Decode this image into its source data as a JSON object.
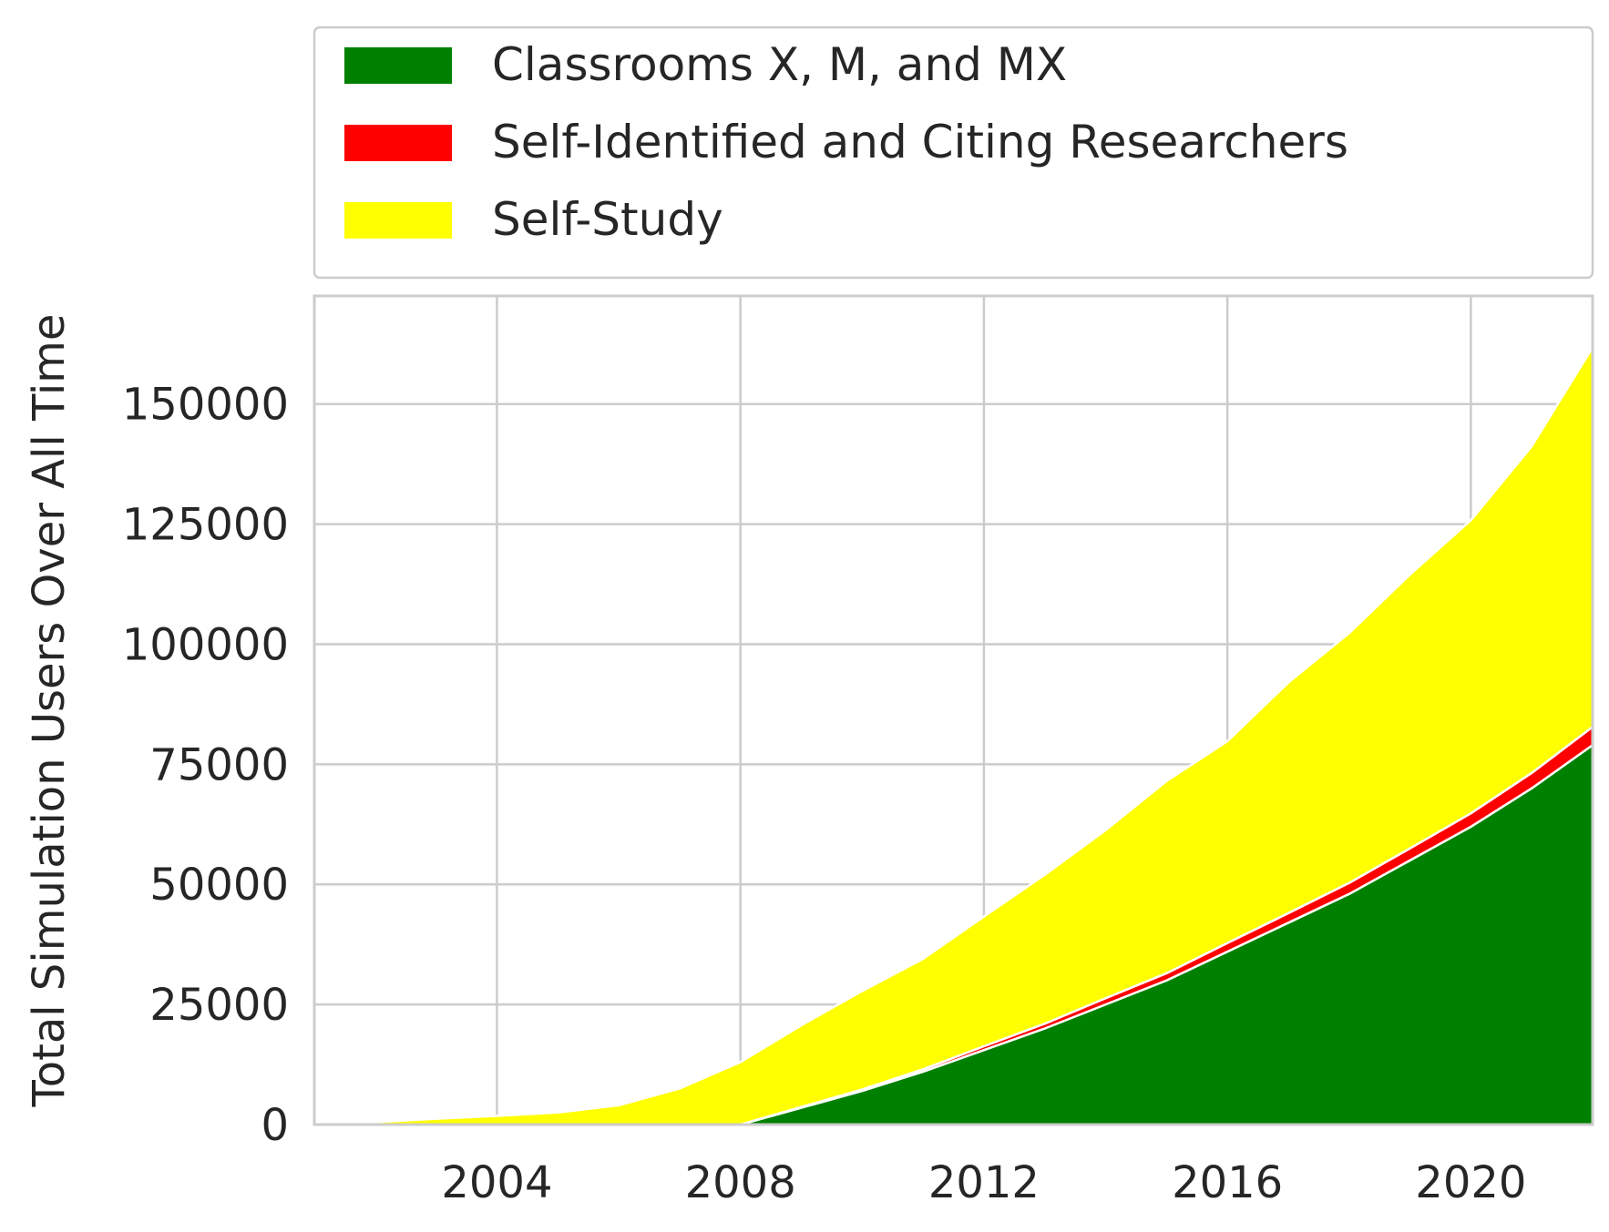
{
  "chart_data": {
    "type": "area",
    "stacked": true,
    "title": "",
    "xlabel": "",
    "ylabel": "Total Simulation Users Over All Time",
    "xlim": [
      2001.0,
      2022.0
    ],
    "ylim": [
      0,
      172500
    ],
    "x_ticks": [
      2004,
      2008,
      2012,
      2016,
      2020
    ],
    "y_ticks": [
      0,
      25000,
      50000,
      75000,
      100000,
      125000,
      150000
    ],
    "grid": true,
    "legend_position": "top (above plot)",
    "x": [
      2001.0,
      2002.0,
      2003.0,
      2004.0,
      2005.0,
      2006.0,
      2007.0,
      2008.0,
      2009.0,
      2010.0,
      2011.0,
      2012.0,
      2013.0,
      2014.0,
      2015.0,
      2016.0,
      2017.0,
      2018.0,
      2019.0,
      2020.0,
      2021.0,
      2022.0
    ],
    "series": [
      {
        "name": "Classrooms X, M, and MX",
        "color": "#008000",
        "values": [
          0,
          0,
          0,
          0,
          0,
          0,
          0,
          0,
          3500,
          7000,
          11000,
          15500,
          20000,
          25000,
          30000,
          36000,
          42000,
          48000,
          55000,
          62000,
          70000,
          79000
        ]
      },
      {
        "name": "Self-Identified and Citing Researchers",
        "color": "#ff0000",
        "values": [
          0,
          0,
          0,
          0,
          0,
          0,
          0,
          0,
          150,
          300,
          500,
          800,
          1000,
          1300,
          1500,
          1800,
          2000,
          2300,
          2500,
          2800,
          3200,
          3800
        ]
      },
      {
        "name": "Self-Study",
        "color": "#ffff00",
        "values": [
          0,
          500,
          1200,
          1800,
          2500,
          4000,
          7500,
          13000,
          17000,
          20500,
          23000,
          27000,
          31000,
          35000,
          40000,
          42000,
          48000,
          52000,
          57000,
          61000,
          68000,
          79000
        ]
      }
    ]
  }
}
